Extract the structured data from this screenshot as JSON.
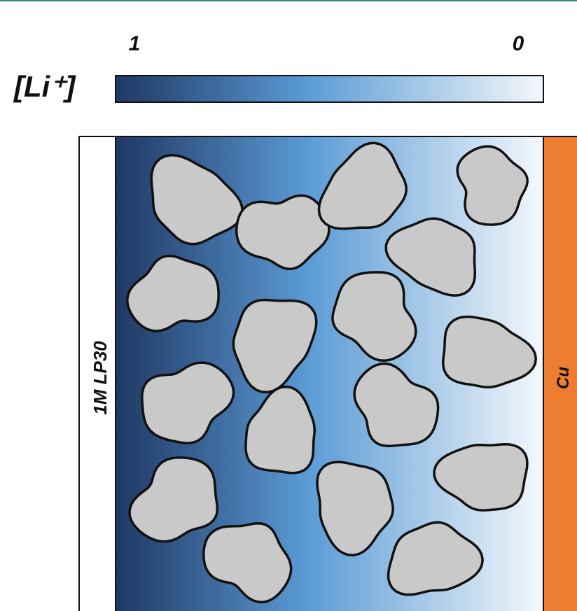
{
  "colorbar": {
    "label": "[Li⁺]",
    "max_label": "1",
    "min_label": "0"
  },
  "electrolyte_label": "1M LP30",
  "current_collector_label": "Cu"
}
